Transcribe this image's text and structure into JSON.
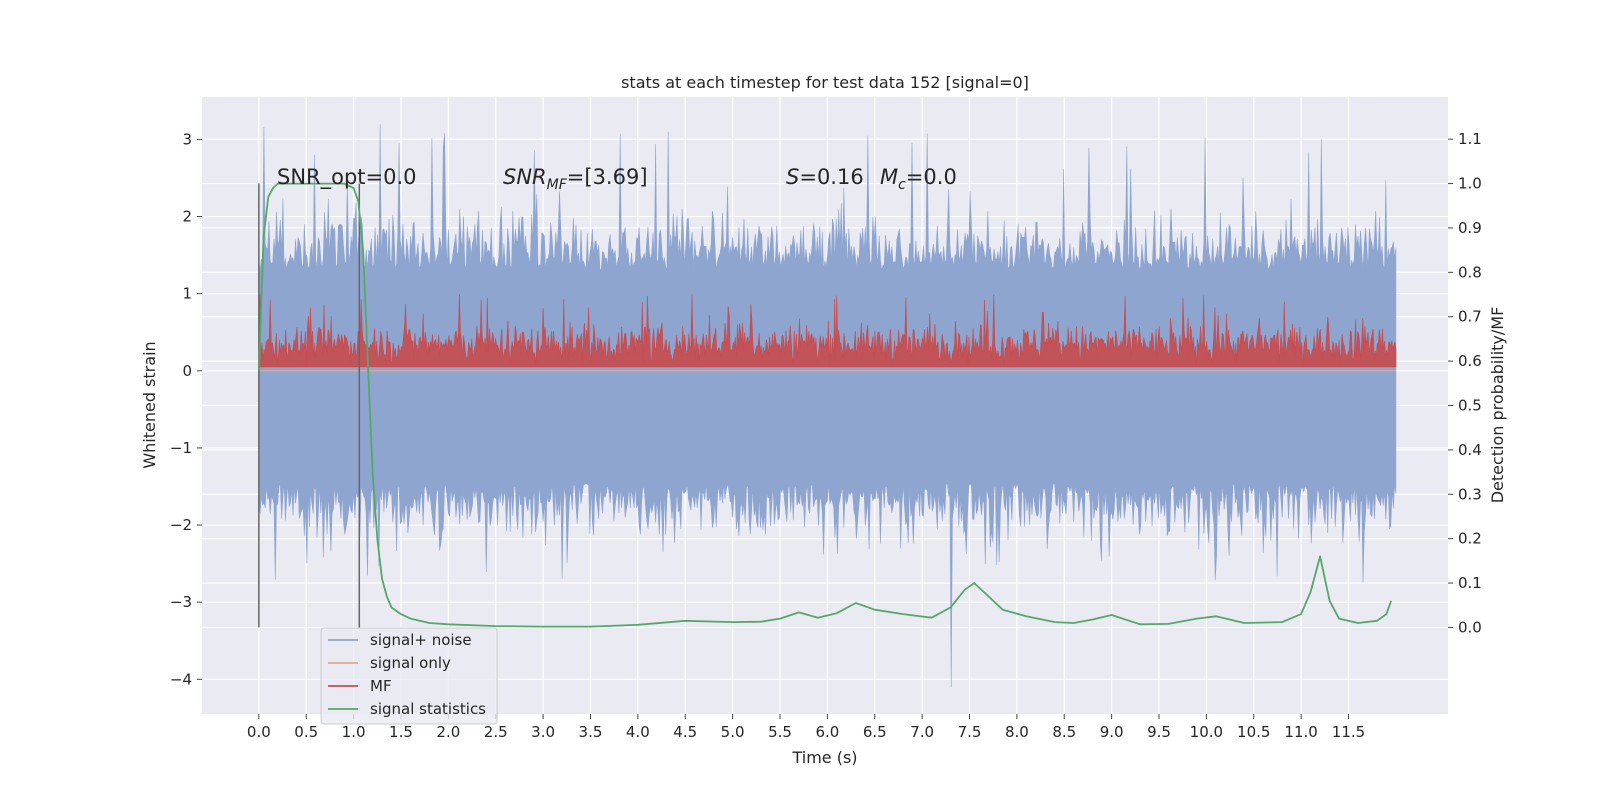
{
  "chart_data": {
    "type": "line",
    "title": "stats at each timestep for test data 152 [signal=0]",
    "xlabel": "Time (s)",
    "ylabel": "Whitened strain",
    "ylabel_right": "Detection probability/MF",
    "xlim": [
      -0.6,
      12.55
    ],
    "ylim": [
      -4.45,
      3.55
    ],
    "ylim_right": [
      -0.195,
      1.195
    ],
    "grid": true,
    "legend_position": "lower-left",
    "x_ticks": [
      0.0,
      0.5,
      1.0,
      1.5,
      2.0,
      2.5,
      3.0,
      3.5,
      4.0,
      4.5,
      5.0,
      5.5,
      6.0,
      6.5,
      7.0,
      7.5,
      8.0,
      8.5,
      9.0,
      9.5,
      10.0,
      10.5,
      11.0,
      11.5
    ],
    "x_tick_labels": [
      "0.0",
      "0.5",
      "1.0",
      "1.5",
      "2.0",
      "2.5",
      "3.0",
      "3.5",
      "4.0",
      "4.5",
      "5.0",
      "5.5",
      "6.0",
      "6.5",
      "7.0",
      "7.5",
      "8.0",
      "8.5",
      "9.0",
      "9.5",
      "10.0",
      "10.5",
      "11.0",
      "11.5"
    ],
    "y_ticks": [
      3,
      2,
      1,
      0,
      -1,
      -2,
      -3,
      -4
    ],
    "y_tick_labels": [
      "3",
      "2",
      "1",
      "0",
      "−1",
      "−2",
      "−3",
      "−4"
    ],
    "y_right_ticks": [
      1.1,
      1.0,
      0.9,
      0.8,
      0.7,
      0.6,
      0.5,
      0.4,
      0.3,
      0.2,
      0.1,
      0.0
    ],
    "y_right_tick_labels": [
      "1.1",
      "1.0",
      "0.9",
      "0.8",
      "0.7",
      "0.6",
      "0.5",
      "0.4",
      "0.3",
      "0.2",
      "0.1",
      "0.0"
    ],
    "annotations": {
      "snr_opt": "SNR_opt=0.0",
      "snr_mf_prefix": "SNR",
      "snr_mf_sub": "MF",
      "snr_mf_value": "=[3.69]",
      "s_prefix": "S",
      "s_value": "=0.16",
      "mc_prefix": "M",
      "mc_sub": "c",
      "mc_value": "=0.0"
    },
    "vlines": [
      0.0,
      1.06
    ],
    "series": [
      {
        "name": "signal+ noise",
        "color": "#8ea5cf",
        "axis": "left",
        "envelope": {
          "upper_typical": 1.3,
          "upper_extreme": 3.2,
          "lower_typical": -1.45,
          "lower_extreme": -4.1,
          "x_range": [
            0.0,
            12.0
          ]
        }
      },
      {
        "name": "signal only",
        "color": "#e8a68c",
        "axis": "left",
        "values_constant": 0.0
      },
      {
        "name": "MF",
        "color": "#c44e52",
        "axis": "left",
        "envelope": {
          "baseline": 0.05,
          "upper_typical": 0.55,
          "upper_extreme": 1.0,
          "x_range": [
            0.0,
            12.0
          ]
        }
      },
      {
        "name": "signal statistics",
        "color": "#55a868",
        "axis": "right",
        "x": [
          0.0,
          0.05,
          0.1,
          0.15,
          0.2,
          0.3,
          0.5,
          0.7,
          0.9,
          1.0,
          1.05,
          1.1,
          1.15,
          1.2,
          1.25,
          1.3,
          1.35,
          1.4,
          1.5,
          1.6,
          1.8,
          2.0,
          2.5,
          3.0,
          3.5,
          4.0,
          4.5,
          5.0,
          5.3,
          5.5,
          5.7,
          5.9,
          6.1,
          6.3,
          6.5,
          6.8,
          7.1,
          7.3,
          7.45,
          7.55,
          7.65,
          7.85,
          8.1,
          8.4,
          8.6,
          8.8,
          9.0,
          9.3,
          9.6,
          9.9,
          10.1,
          10.4,
          10.8,
          11.0,
          11.1,
          11.2,
          11.3,
          11.4,
          11.6,
          11.8,
          11.9,
          11.95
        ],
        "values": [
          0.58,
          0.88,
          0.97,
          0.99,
          1.0,
          1.0,
          1.0,
          1.0,
          1.0,
          0.99,
          0.96,
          0.85,
          0.6,
          0.35,
          0.2,
          0.11,
          0.07,
          0.045,
          0.03,
          0.02,
          0.01,
          0.007,
          0.003,
          0.002,
          0.002,
          0.006,
          0.015,
          0.012,
          0.013,
          0.02,
          0.034,
          0.022,
          0.032,
          0.055,
          0.04,
          0.03,
          0.022,
          0.045,
          0.085,
          0.1,
          0.08,
          0.04,
          0.025,
          0.012,
          0.01,
          0.018,
          0.028,
          0.007,
          0.008,
          0.02,
          0.025,
          0.01,
          0.012,
          0.03,
          0.08,
          0.16,
          0.06,
          0.02,
          0.01,
          0.015,
          0.03,
          0.06
        ]
      }
    ]
  },
  "legend": {
    "items": [
      {
        "label": "signal+ noise",
        "color": "#8ea5cf"
      },
      {
        "label": "signal only",
        "color": "#e8a68c"
      },
      {
        "label": "MF",
        "color": "#c44e52"
      },
      {
        "label": "signal statistics",
        "color": "#55a868"
      }
    ]
  },
  "colors": {
    "plot_background": "#eaeaf2",
    "grid": "#ffffff",
    "vline": "#666666"
  }
}
